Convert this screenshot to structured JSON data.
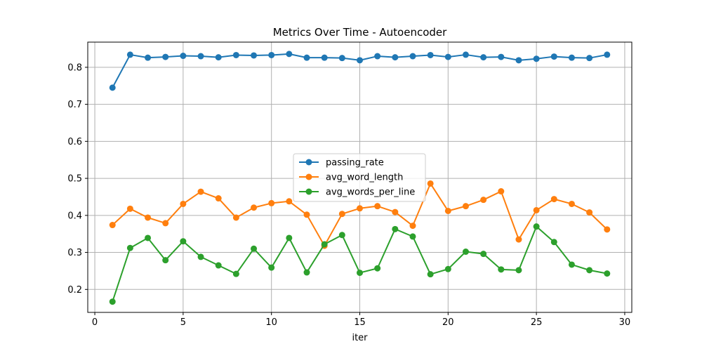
{
  "chart_data": {
    "type": "line",
    "title": "Metrics Over Time - Autoencoder",
    "xlabel": "iter",
    "ylabel": "",
    "xlim": [
      -0.4,
      30.4
    ],
    "ylim": [
      0.138,
      0.868
    ],
    "xticks": [
      0,
      5,
      10,
      15,
      20,
      25,
      30
    ],
    "yticks": [
      0.2,
      0.3,
      0.4,
      0.5,
      0.6,
      0.7,
      0.8
    ],
    "xtick_labels": [
      "0",
      "5",
      "10",
      "15",
      "20",
      "25",
      "30"
    ],
    "ytick_labels": [
      "0.2",
      "0.3",
      "0.4",
      "0.5",
      "0.6",
      "0.7",
      "0.8"
    ],
    "grid": true,
    "legend_position": "center",
    "x": [
      1,
      2,
      3,
      4,
      5,
      6,
      7,
      8,
      9,
      10,
      11,
      12,
      13,
      14,
      15,
      16,
      17,
      18,
      19,
      20,
      21,
      22,
      23,
      24,
      25,
      26,
      27,
      28,
      29
    ],
    "series": [
      {
        "name": "passing_rate",
        "color": "#1f77b4",
        "values": [
          0.745,
          0.834,
          0.826,
          0.828,
          0.831,
          0.83,
          0.827,
          0.833,
          0.832,
          0.833,
          0.836,
          0.826,
          0.826,
          0.825,
          0.819,
          0.83,
          0.827,
          0.83,
          0.833,
          0.828,
          0.834,
          0.827,
          0.828,
          0.819,
          0.823,
          0.829,
          0.826,
          0.825,
          0.834
        ]
      },
      {
        "name": "avg_word_length",
        "color": "#ff7f0e",
        "values": [
          0.374,
          0.418,
          0.394,
          0.379,
          0.431,
          0.464,
          0.446,
          0.394,
          0.421,
          0.433,
          0.438,
          0.402,
          0.318,
          0.404,
          0.419,
          0.425,
          0.409,
          0.372,
          0.486,
          0.412,
          0.425,
          0.442,
          0.465,
          0.335,
          0.414,
          0.444,
          0.431,
          0.408,
          0.362
        ]
      },
      {
        "name": "avg_words_per_line",
        "color": "#2ca02c",
        "values": [
          0.167,
          0.312,
          0.339,
          0.279,
          0.33,
          0.288,
          0.265,
          0.242,
          0.31,
          0.259,
          0.339,
          0.246,
          0.322,
          0.347,
          0.245,
          0.257,
          0.363,
          0.343,
          0.241,
          0.255,
          0.302,
          0.296,
          0.254,
          0.252,
          0.37,
          0.328,
          0.267,
          0.252,
          0.243
        ]
      }
    ]
  }
}
